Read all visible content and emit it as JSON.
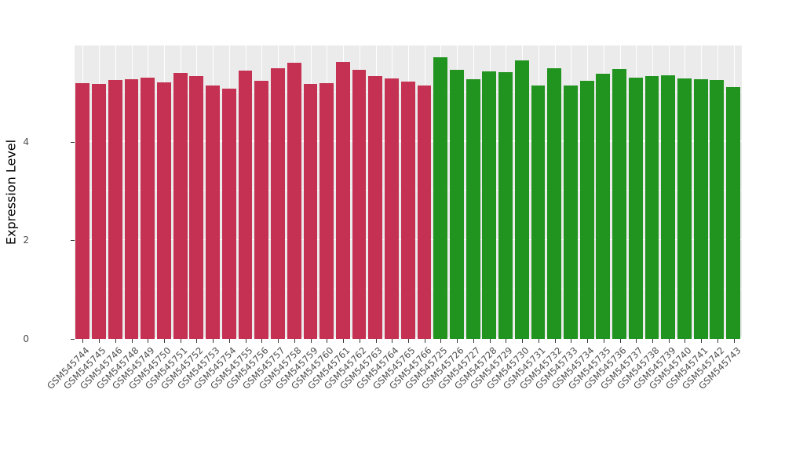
{
  "chart_data": {
    "type": "bar",
    "title": "",
    "xlabel": "",
    "ylabel": "Expression Level",
    "ylim": [
      0,
      5.95
    ],
    "yticks": [
      0,
      2,
      4
    ],
    "yticks_minor": [
      1,
      3,
      5
    ],
    "grid_on": true,
    "legend": "none",
    "panel_bg": "#EBEBEB",
    "grid_color": "#FFFFFF",
    "groups": [
      {
        "name": "group-1",
        "color": "#C43152",
        "categories": [
          "GSM545744",
          "GSM545745",
          "GSM545746",
          "GSM545748",
          "GSM545749",
          "GSM545750",
          "GSM545751",
          "GSM545752",
          "GSM545753",
          "GSM545754",
          "GSM545755",
          "GSM545756",
          "GSM545757",
          "GSM545758",
          "GSM545759",
          "GSM545760",
          "GSM545761",
          "GSM545762",
          "GSM545763",
          "GSM545764",
          "GSM545765",
          "GSM545766"
        ],
        "values": [
          5.19,
          5.17,
          5.25,
          5.27,
          5.3,
          5.21,
          5.4,
          5.33,
          5.14,
          5.08,
          5.44,
          5.24,
          5.49,
          5.6,
          5.17,
          5.19,
          5.62,
          5.46,
          5.33,
          5.29,
          5.22,
          5.14
        ]
      },
      {
        "name": "group-2",
        "color": "#21931F",
        "categories": [
          "GSM545725",
          "GSM545726",
          "GSM545727",
          "GSM545728",
          "GSM545729",
          "GSM545730",
          "GSM545731",
          "GSM545732",
          "GSM545733",
          "GSM545734",
          "GSM545735",
          "GSM545736",
          "GSM545737",
          "GSM545738",
          "GSM545739",
          "GSM545740",
          "GSM545741",
          "GSM545742",
          "GSM545743"
        ],
        "values": [
          5.71,
          5.46,
          5.27,
          5.43,
          5.41,
          5.65,
          5.14,
          5.49,
          5.14,
          5.24,
          5.38,
          5.48,
          5.3,
          5.33,
          5.35,
          5.29,
          5.27,
          5.25,
          5.11
        ]
      }
    ]
  }
}
